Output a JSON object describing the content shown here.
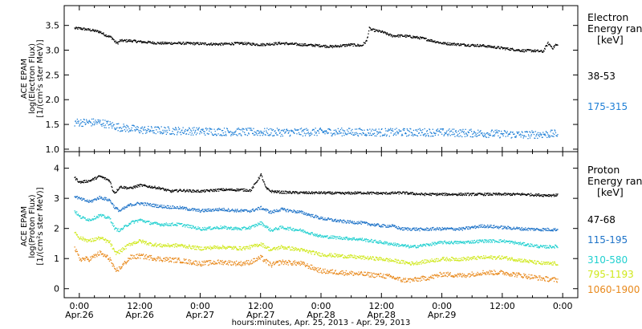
{
  "chart_data": [
    {
      "type": "scatter",
      "panel": "top",
      "title": "",
      "xlabel": "",
      "ylabel_lines": [
        "ACE EPAM",
        "log(Electron Flux)",
        "[1/(cm²s ster MeV)]"
      ],
      "ylim": [
        0.95,
        3.9
      ],
      "yticks": [
        1.0,
        1.5,
        2.0,
        2.5,
        3.0,
        3.5
      ],
      "ytick_labels": [
        "1.0",
        "1.5",
        "2.0",
        "2.5",
        "3.0",
        "3.5"
      ],
      "xlim_hours": [
        -3,
        99
      ],
      "legend": {
        "placement": "right",
        "header": [
          "Electron",
          "Energy ran",
          "[keV]"
        ],
        "entries": [
          "38-53",
          "175-315"
        ]
      },
      "series": [
        {
          "name": "38-53",
          "color": "#000000",
          "x_hours": [
            -1,
            0,
            2,
            4,
            5,
            6,
            6.5,
            7,
            7.5,
            8,
            10,
            12,
            16,
            20,
            24,
            28,
            32,
            36,
            40,
            44,
            48,
            50,
            52,
            54,
            56,
            57,
            57.5,
            58,
            60,
            62,
            64,
            66,
            68,
            70,
            72,
            76,
            80,
            84,
            88,
            90,
            92,
            93,
            94,
            94.5,
            95
          ],
          "y": [
            3.45,
            3.45,
            3.42,
            3.38,
            3.32,
            3.28,
            3.25,
            3.18,
            3.15,
            3.2,
            3.2,
            3.18,
            3.15,
            3.15,
            3.14,
            3.13,
            3.15,
            3.12,
            3.15,
            3.12,
            3.1,
            3.08,
            3.1,
            3.12,
            3.1,
            3.2,
            3.45,
            3.42,
            3.38,
            3.3,
            3.3,
            3.28,
            3.25,
            3.2,
            3.15,
            3.12,
            3.1,
            3.05,
            3.0,
            3.0,
            2.98,
            3.15,
            3.05,
            3.12,
            3.1
          ],
          "scatter": 0.025
        },
        {
          "name": "175-315",
          "color": "#1e7fd6",
          "x_hours": [
            -1,
            4,
            8,
            12,
            20,
            30,
            40,
            50,
            60,
            70,
            80,
            88,
            95
          ],
          "y": [
            1.55,
            1.55,
            1.45,
            1.4,
            1.38,
            1.36,
            1.35,
            1.36,
            1.35,
            1.35,
            1.33,
            1.3,
            1.32
          ],
          "scatter": 0.08
        }
      ]
    },
    {
      "type": "scatter",
      "panel": "bottom",
      "title": "",
      "xlabel": "hours:minutes, Apr. 25, 2013 - Apr. 29, 2013",
      "ylabel_lines": [
        "ACE EPAM",
        "log(Proton Flux)",
        "[1/(cm²s ster MeV)]"
      ],
      "ylim": [
        -0.3,
        4.55
      ],
      "yticks": [
        0,
        1,
        2,
        3,
        4
      ],
      "ytick_labels": [
        "0",
        "1",
        "2",
        "3",
        "4"
      ],
      "xlim_hours": [
        -3,
        99
      ],
      "xticks_hours": [
        0,
        12,
        24,
        36,
        48,
        60,
        72,
        84,
        96
      ],
      "xtick_labels": [
        "0:00",
        "12:00",
        "0:00",
        "12:00",
        "0:00",
        "12:00",
        "0:00",
        "12:00",
        "0:00"
      ],
      "xtick_dates": [
        "Apr.26",
        "Apr.26",
        "Apr.27",
        "Apr.27",
        "Apr.28",
        "Apr.28",
        "Apr.29",
        "",
        ""
      ],
      "legend": {
        "placement": "right",
        "header": [
          "Proton",
          "Energy ran",
          "[keV]"
        ],
        "entries": [
          "47-68",
          "115-195",
          "310-580",
          "795-1193",
          "1060-1900"
        ]
      },
      "series": [
        {
          "name": "47-68",
          "color": "#000000",
          "x_hours": [
            -1,
            0,
            2,
            4,
            6,
            6.5,
            7,
            8,
            10,
            12,
            14,
            16,
            18,
            20,
            24,
            28,
            32,
            34,
            36,
            37,
            38,
            40,
            44,
            48,
            52,
            56,
            60,
            64,
            68,
            72,
            76,
            80,
            84,
            88,
            92,
            95
          ],
          "y": [
            3.7,
            3.55,
            3.6,
            3.75,
            3.6,
            3.3,
            3.2,
            3.4,
            3.35,
            3.45,
            3.4,
            3.35,
            3.25,
            3.28,
            3.25,
            3.3,
            3.3,
            3.28,
            3.8,
            3.35,
            3.25,
            3.22,
            3.2,
            3.2,
            3.18,
            3.2,
            3.18,
            3.2,
            3.15,
            3.15,
            3.15,
            3.15,
            3.15,
            3.15,
            3.12,
            3.12
          ],
          "scatter": 0.04
        },
        {
          "name": "115-195",
          "color": "#1e73c8",
          "x_hours": [
            -1,
            0,
            2,
            4,
            6,
            7,
            8,
            10,
            12,
            14,
            16,
            20,
            24,
            28,
            32,
            34,
            36,
            38,
            40,
            44,
            48,
            52,
            56,
            60,
            62,
            64,
            66,
            68,
            70,
            72,
            76,
            80,
            84,
            88,
            92,
            95
          ],
          "y": [
            3.1,
            3.0,
            2.9,
            3.05,
            2.95,
            2.7,
            2.6,
            2.8,
            2.85,
            2.8,
            2.75,
            2.7,
            2.6,
            2.65,
            2.6,
            2.6,
            2.7,
            2.55,
            2.65,
            2.55,
            2.35,
            2.25,
            2.2,
            2.1,
            2.1,
            2.0,
            2.0,
            1.98,
            2.0,
            2.0,
            2.0,
            2.1,
            2.05,
            2.0,
            1.98,
            1.98
          ],
          "scatter": 0.05
        },
        {
          "name": "310-580",
          "color": "#21d0d0",
          "x_hours": [
            -1,
            0,
            2,
            4,
            6,
            7,
            8,
            10,
            12,
            14,
            16,
            20,
            24,
            28,
            32,
            34,
            36,
            38,
            40,
            44,
            48,
            52,
            56,
            60,
            62,
            64,
            66,
            68,
            70,
            72,
            76,
            80,
            84,
            88,
            92,
            95
          ],
          "y": [
            2.6,
            2.4,
            2.3,
            2.45,
            2.35,
            2.0,
            1.95,
            2.2,
            2.3,
            2.2,
            2.15,
            2.15,
            2.0,
            2.05,
            2.0,
            2.05,
            2.2,
            1.95,
            2.05,
            1.95,
            1.75,
            1.7,
            1.65,
            1.55,
            1.5,
            1.45,
            1.4,
            1.45,
            1.5,
            1.55,
            1.55,
            1.6,
            1.6,
            1.5,
            1.4,
            1.42
          ],
          "scatter": 0.05
        },
        {
          "name": "795-1193",
          "color": "#cfe81b",
          "x_hours": [
            -1,
            0,
            2,
            4,
            6,
            7,
            8,
            10,
            12,
            14,
            16,
            20,
            24,
            28,
            32,
            34,
            36,
            38,
            40,
            44,
            48,
            52,
            56,
            60,
            62,
            64,
            66,
            68,
            70,
            72,
            76,
            80,
            84,
            88,
            92,
            95
          ],
          "y": [
            1.9,
            1.7,
            1.6,
            1.7,
            1.55,
            1.2,
            1.25,
            1.5,
            1.6,
            1.5,
            1.45,
            1.45,
            1.35,
            1.4,
            1.35,
            1.4,
            1.5,
            1.3,
            1.4,
            1.3,
            1.15,
            1.1,
            1.05,
            1.0,
            0.95,
            0.9,
            0.85,
            0.9,
            0.95,
            1.0,
            1.0,
            1.05,
            1.05,
            0.95,
            0.85,
            0.85
          ],
          "scatter": 0.06
        },
        {
          "name": "1060-1900",
          "color": "#e8891c",
          "x_hours": [
            -1,
            0,
            2,
            4,
            6,
            7,
            8,
            10,
            12,
            14,
            16,
            20,
            24,
            28,
            32,
            34,
            36,
            38,
            40,
            44,
            48,
            52,
            56,
            60,
            62,
            64,
            66,
            68,
            70,
            72,
            76,
            80,
            84,
            88,
            92,
            95
          ],
          "y": [
            1.35,
            1.0,
            1.0,
            1.2,
            1.0,
            0.6,
            0.7,
            1.05,
            1.1,
            1.05,
            1.0,
            0.95,
            0.85,
            0.9,
            0.85,
            0.9,
            1.05,
            0.8,
            0.9,
            0.85,
            0.6,
            0.55,
            0.5,
            0.45,
            0.4,
            0.3,
            0.3,
            0.35,
            0.4,
            0.5,
            0.45,
            0.55,
            0.55,
            0.45,
            0.35,
            0.3
          ],
          "scatter": 0.08
        }
      ]
    }
  ]
}
